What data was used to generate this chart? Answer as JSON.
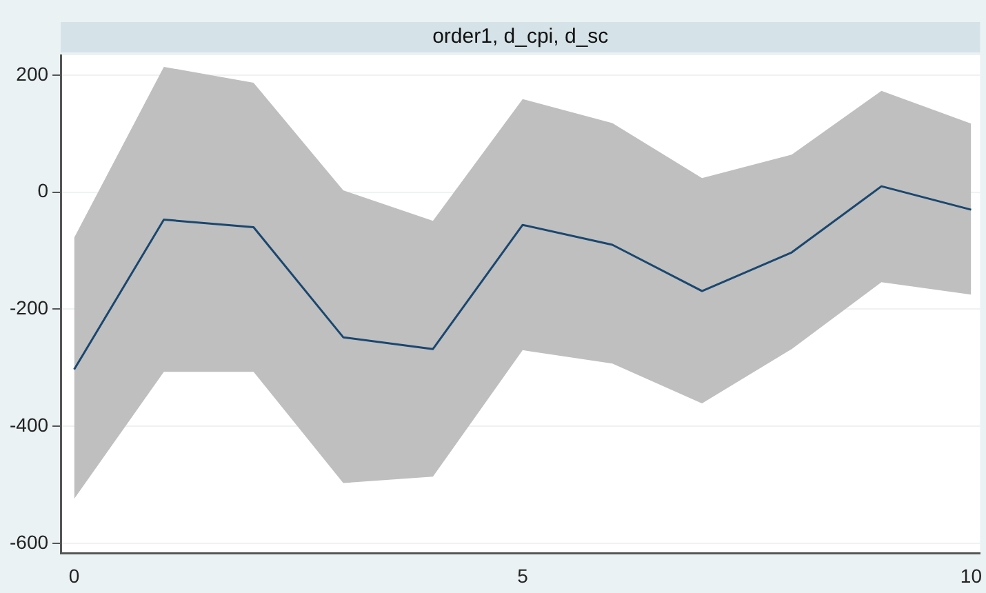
{
  "chart_data": {
    "type": "line",
    "title": "order1, d_cpi, d_sc",
    "x": [
      0,
      1,
      2,
      3,
      4,
      5,
      6,
      7,
      8,
      9,
      10
    ],
    "series": [
      {
        "color": "#1a476f",
        "values": [
          -303,
          -47,
          -60,
          -248,
          -268,
          -56,
          -90,
          -169,
          -103,
          10,
          -30
        ],
        "lower": [
          -524,
          -307,
          -307,
          -497,
          -486,
          -270,
          -293,
          -361,
          -268,
          -154,
          -175
        ],
        "upper": [
          -78,
          214,
          187,
          3,
          -49,
          159,
          118,
          24,
          64,
          173,
          117
        ]
      }
    ],
    "xlim": [
      -0.15,
      10.1
    ],
    "xticks": [
      0,
      5,
      10
    ],
    "ylim": [
      -617,
      234
    ],
    "yticks": [
      -600,
      -400,
      -200,
      0,
      200
    ],
    "grid": "y",
    "legend": false,
    "marker": "none",
    "line_style": "solid"
  }
}
